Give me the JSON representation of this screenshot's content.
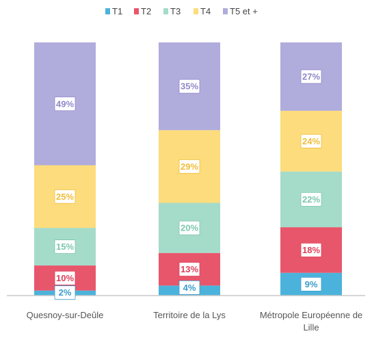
{
  "chart_data": {
    "type": "bar",
    "stacked": true,
    "percent": true,
    "categories": [
      {
        "label_lines": [
          "Quesnoy-sur-Deûle"
        ]
      },
      {
        "label_lines": [
          "Territoire de la Lys"
        ]
      },
      {
        "label_lines": [
          "Métropole Européenne de",
          "Lille"
        ]
      }
    ],
    "series": [
      {
        "name": "T1",
        "color": "#4bb3db",
        "label_color": "#3a9ccc",
        "values": [
          2,
          4,
          9
        ]
      },
      {
        "name": "T2",
        "color": "#e8566b",
        "label_color": "#de3f5a",
        "values": [
          10,
          13,
          18
        ]
      },
      {
        "name": "T3",
        "color": "#a5dbc9",
        "label_color": "#7cc6ae",
        "values": [
          15,
          20,
          22
        ]
      },
      {
        "name": "T4",
        "color": "#fcdc7c",
        "label_color": "#f0bd38",
        "values": [
          25,
          29,
          24
        ]
      },
      {
        "name": "T5 et +",
        "color": "#b0acdc",
        "label_color": "#8e88c9",
        "values": [
          49,
          35,
          27
        ]
      }
    ],
    "data_labels": [
      [
        "2%",
        "4%",
        "9%"
      ],
      [
        "10%",
        "13%",
        "18%"
      ],
      [
        "15%",
        "20%",
        "22%"
      ],
      [
        "25%",
        "29%",
        "24%"
      ],
      [
        "49%",
        "35%",
        "27%"
      ]
    ],
    "ylim": [
      0,
      100
    ],
    "legend_position": "top-center",
    "grid": false
  }
}
